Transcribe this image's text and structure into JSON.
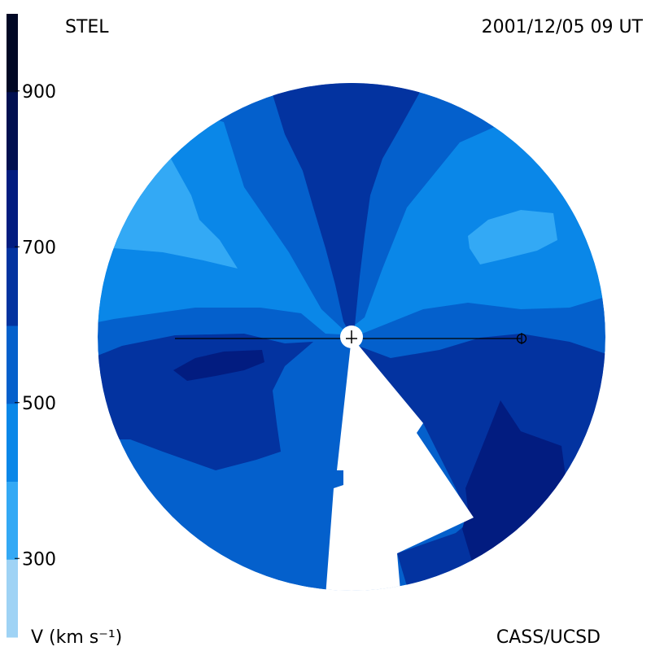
{
  "header": {
    "instrument": "STEL",
    "datetime": "2001/12/05 09 UT"
  },
  "footer": {
    "units": "V (km s⁻¹)",
    "credit": "CASS/UCSD"
  },
  "chart_data": {
    "type": "heatmap",
    "quantity": "V (km s⁻¹)",
    "colorbar": {
      "ticks": [
        "900",
        "700",
        "500",
        "300"
      ],
      "levels": [
        {
          "from": 200,
          "to": 300,
          "color": "#9fd3f5"
        },
        {
          "from": 300,
          "to": 400,
          "color": "#33a9f5"
        },
        {
          "from": 400,
          "to": 500,
          "color": "#0a87e8"
        },
        {
          "from": 500,
          "to": 600,
          "color": "#0460cc"
        },
        {
          "from": 600,
          "to": 700,
          "color": "#0333a0"
        },
        {
          "from": 700,
          "to": 800,
          "color": "#021c80"
        },
        {
          "from": 800,
          "to": 900,
          "color": "#011050"
        },
        {
          "from": 900,
          "to": 1000,
          "color": "#010825"
        }
      ],
      "range": [
        200,
        1000
      ]
    },
    "markers": [
      {
        "symbol": "sun",
        "label": "Sun"
      },
      {
        "symbol": "earth",
        "label": "Earth"
      }
    ]
  },
  "colors": {
    "sun": "#ffffff",
    "line": "#000000",
    "background": "#ffffff"
  }
}
